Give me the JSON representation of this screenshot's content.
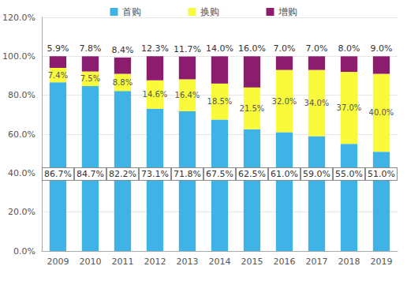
{
  "chart_data": {
    "type": "bar",
    "stacked": true,
    "data_labels": true,
    "grid": true,
    "legend": "top",
    "categories": [
      "2009",
      "2010",
      "2011",
      "2012",
      "2013",
      "2014",
      "2015",
      "2016",
      "2017",
      "2018",
      "2019"
    ],
    "series": [
      {
        "name": "首购",
        "color": "#3fb3e6",
        "values": [
          86.7,
          84.7,
          82.2,
          73.1,
          71.8,
          67.5,
          62.5,
          61.0,
          59.0,
          55.0,
          51.0
        ],
        "value_labels": [
          "86.7%",
          "84.7%",
          "82.2%",
          "73.1%",
          "71.8%",
          "67.5%",
          "62.5%",
          "61.0%",
          "59.0%",
          "55.0%",
          "51.0%"
        ]
      },
      {
        "name": "换购",
        "color": "#fafa3c",
        "values": [
          7.4,
          7.5,
          8.8,
          14.6,
          16.4,
          18.5,
          21.5,
          32.0,
          34.0,
          37.0,
          40.0
        ],
        "value_labels": [
          "7.4%",
          "7.5%",
          "8.8%",
          "14.6%",
          "16.4%",
          "18.5%",
          "21.5%",
          "32.0%",
          "34.0%",
          "37.0%",
          "40.0%"
        ]
      },
      {
        "name": "增购",
        "color": "#8c1c6e",
        "values": [
          5.9,
          7.8,
          8.4,
          12.3,
          11.7,
          14.0,
          16.0,
          7.0,
          7.0,
          8.0,
          9.0
        ],
        "value_labels": [
          "5.9%",
          "7.8%",
          "8.4%",
          "12.3%",
          "11.7%",
          "14.0%",
          "16.0%",
          "7.0%",
          "7.0%",
          "8.0%",
          "9.0%"
        ]
      }
    ],
    "ylim": [
      0,
      120
    ],
    "yticks": [
      {
        "value": 0,
        "label": "0.0%"
      },
      {
        "value": 20,
        "label": "20.0%"
      },
      {
        "value": 40,
        "label": "40.0%"
      },
      {
        "value": 60,
        "label": "60.0%"
      },
      {
        "value": 80,
        "label": "80.0%"
      },
      {
        "value": 100,
        "label": "100.0%"
      },
      {
        "value": 120,
        "label": "120.0%"
      }
    ]
  }
}
